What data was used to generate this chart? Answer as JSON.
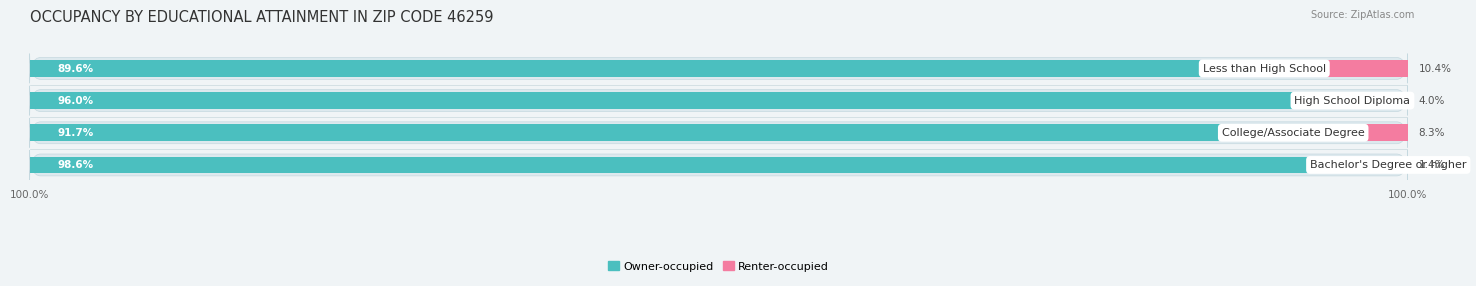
{
  "title": "OCCUPANCY BY EDUCATIONAL ATTAINMENT IN ZIP CODE 46259",
  "source": "Source: ZipAtlas.com",
  "categories": [
    "Less than High School",
    "High School Diploma",
    "College/Associate Degree",
    "Bachelor's Degree or higher"
  ],
  "owner_values": [
    89.6,
    96.0,
    91.7,
    98.6
  ],
  "renter_values": [
    10.4,
    4.0,
    8.3,
    1.4
  ],
  "owner_color": "#4BBFBF",
  "renter_color": "#F47CA0",
  "row_bg_color": "#E8F2F5",
  "background_color": "#F0F4F6",
  "title_fontsize": 10.5,
  "label_fontsize": 8.0,
  "pct_fontsize": 7.5,
  "tick_fontsize": 7.5,
  "bar_height": 0.52
}
